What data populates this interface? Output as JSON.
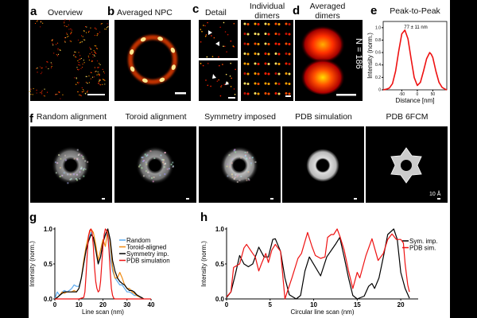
{
  "panels": {
    "a": {
      "letter": "a",
      "title": "Overview"
    },
    "b": {
      "letter": "b",
      "title": "Averaged NPC"
    },
    "c": {
      "letter": "c",
      "title": "Detail",
      "title2_line1": "Individual",
      "title2_line2": "dimers"
    },
    "d": {
      "letter": "d",
      "title_line1": "Averaged",
      "title_line2": "dimers",
      "count_label": "N = 186"
    },
    "e": {
      "letter": "e",
      "title": "Peak-to-Peak",
      "annotation": "77 ± 11 nm"
    },
    "f": {
      "letter": "f",
      "titles": [
        "Random alignment",
        "Toroid alignment",
        "Symmetry imposed",
        "PDB simulation",
        "PDB 6FCM"
      ],
      "scale_label": "10 Å"
    },
    "g": {
      "letter": "g"
    },
    "h": {
      "letter": "h"
    }
  },
  "colors": {
    "random": "#5aaaf0",
    "toroid": "#f08c14",
    "symmetry": "#000000",
    "pdb": "#ee1111"
  },
  "chart_data": [
    {
      "id": "e",
      "type": "line",
      "title": "Peak-to-Peak",
      "xlabel": "Distance [nm]",
      "ylabel": "Intensity (norm.)",
      "xticks": [
        "-50",
        "0",
        "50"
      ],
      "yticks": [
        "0",
        "0.2",
        "0.4",
        "0.6",
        "0.8",
        "1.0"
      ],
      "xlim": [
        -110,
        95
      ],
      "ylim": [
        0,
        1.1
      ],
      "grid": false,
      "series": [
        {
          "x": [
            -110,
            -100,
            -90,
            -80,
            -70,
            -60,
            -50,
            -40,
            -30,
            -20,
            -10,
            0,
            10,
            20,
            30,
            40,
            45,
            50,
            60,
            70,
            80,
            90,
            95
          ],
          "y": [
            0,
            0.01,
            0.03,
            0.1,
            0.3,
            0.62,
            0.9,
            0.96,
            0.82,
            0.5,
            0.2,
            0.07,
            0.12,
            0.3,
            0.5,
            0.6,
            0.57,
            0.52,
            0.3,
            0.12,
            0.04,
            0.01,
            0
          ]
        }
      ]
    },
    {
      "id": "g",
      "type": "line",
      "xlabel": "Line scan (nm)",
      "ylabel": "Intensity (norm.)",
      "xticks": [
        "0",
        "10",
        "20",
        "30",
        "40"
      ],
      "yticks": [
        "0.0",
        "0.5",
        "1.0"
      ],
      "xlim": [
        0,
        40
      ],
      "ylim": [
        0,
        1
      ],
      "grid": false,
      "legend": "right",
      "series": [
        {
          "name": "Random",
          "x": [
            0,
            1,
            2,
            3,
            4,
            5,
            6,
            7,
            8,
            9,
            10,
            11,
            12,
            13,
            14,
            15,
            16,
            17,
            18,
            19,
            20,
            21,
            22,
            23,
            24,
            25,
            26,
            27,
            28,
            29,
            30,
            31,
            32,
            33,
            34,
            35,
            36,
            37
          ],
          "y": [
            0,
            0.1,
            0.05,
            0.1,
            0.12,
            0.1,
            0.12,
            0.15,
            0.2,
            0.18,
            0.18,
            0.3,
            0.5,
            0.7,
            0.85,
            0.95,
            0.88,
            0.75,
            0.52,
            0.6,
            0.82,
            0.9,
            0.95,
            0.6,
            0.4,
            0.3,
            0.25,
            0.2,
            0.2,
            0.15,
            0.1,
            0.1,
            0.08,
            0.05,
            0.05,
            0.03,
            0.01,
            0
          ]
        },
        {
          "name": "Toroid-aligned",
          "x": [
            0,
            1,
            2,
            3,
            4,
            5,
            6,
            7,
            8,
            9,
            10,
            11,
            12,
            13,
            14,
            15,
            16,
            17,
            18,
            19,
            20,
            21,
            22,
            23,
            24,
            25,
            26,
            27,
            28,
            29,
            30,
            31,
            32,
            33,
            34,
            35,
            36,
            37
          ],
          "y": [
            0,
            0.02,
            0.05,
            0.1,
            0.08,
            0.1,
            0.1,
            0.1,
            0.12,
            0.1,
            0.15,
            0.3,
            0.55,
            0.75,
            0.9,
            1.0,
            0.95,
            0.78,
            0.55,
            0.7,
            0.85,
            0.75,
            1.0,
            0.8,
            0.45,
            0.3,
            0.3,
            0.38,
            0.3,
            0.2,
            0.15,
            0.15,
            0.1,
            0.08,
            0.05,
            0.03,
            0.02,
            0
          ]
        },
        {
          "name": "Symmetry imp.",
          "x": [
            0,
            1,
            2,
            3,
            4,
            5,
            6,
            7,
            8,
            9,
            10,
            11,
            12,
            13,
            14,
            15,
            16,
            17,
            18,
            19,
            20,
            21,
            22,
            23,
            24,
            25,
            26,
            27,
            28,
            29,
            30,
            31,
            32,
            33,
            34,
            35,
            36,
            37
          ],
          "y": [
            0,
            0.02,
            0.05,
            0.08,
            0.1,
            0.1,
            0.1,
            0.1,
            0.1,
            0.1,
            0.15,
            0.3,
            0.5,
            0.7,
            0.82,
            0.92,
            0.88,
            0.7,
            0.5,
            0.6,
            0.8,
            0.92,
            1.0,
            0.85,
            0.55,
            0.4,
            0.3,
            0.25,
            0.22,
            0.2,
            0.15,
            0.12,
            0.12,
            0.1,
            0.06,
            0.04,
            0.02,
            0
          ]
        },
        {
          "name": "PDB simulation",
          "x": [
            0,
            10,
            12,
            12.5,
            13,
            13.5,
            14,
            14.5,
            15,
            15.5,
            16,
            16.5,
            17,
            17.5,
            18,
            18.5,
            19,
            19.5,
            20,
            20.5,
            21,
            21.5,
            22,
            22.5,
            23,
            23.5,
            24,
            24.5,
            25,
            40
          ],
          "y": [
            0,
            0,
            0.02,
            0.1,
            0.35,
            0.65,
            0.9,
            0.98,
            1.0,
            0.95,
            0.75,
            0.45,
            0.25,
            0.15,
            0.1,
            0.12,
            0.25,
            0.5,
            0.75,
            0.92,
            1.0,
            0.98,
            0.9,
            0.7,
            0.4,
            0.15,
            0.05,
            0.01,
            0,
            0
          ]
        }
      ]
    },
    {
      "id": "h",
      "type": "line",
      "xlabel": "Circular line scan (nm)",
      "ylabel": "Intensity (norm.)",
      "xticks": [
        "0",
        "5",
        "10",
        "15",
        "20"
      ],
      "yticks": [
        "0.0",
        "0.5",
        "1.0"
      ],
      "xlim": [
        0,
        22
      ],
      "ylim": [
        0,
        1
      ],
      "grid": false,
      "legend": "right",
      "series": [
        {
          "name": "Sym. imp.",
          "x": [
            0,
            0.5,
            1,
            1.5,
            2,
            2.5,
            3,
            3.7,
            4.3,
            4.8,
            5.3,
            5.6,
            6.2,
            6.7,
            7.2,
            8,
            8.5,
            9,
            9.5,
            10.8,
            11.5,
            12.5,
            13,
            13.5,
            14,
            14.5,
            15,
            15.8,
            16.3,
            16.7,
            17,
            17.5,
            18,
            18.5,
            19.2,
            19.6,
            20,
            20.5,
            21
          ],
          "y": [
            0.02,
            0.1,
            0.35,
            0.62,
            0.5,
            0.46,
            0.5,
            0.74,
            0.6,
            0.6,
            0.85,
            0.86,
            0.68,
            0.3,
            0.06,
            0,
            0.05,
            0.4,
            0.6,
            0.33,
            0.6,
            0.78,
            0.88,
            0.6,
            0.3,
            0.05,
            0,
            0.04,
            0.18,
            0.22,
            0.15,
            0.3,
            0.6,
            0.92,
            1.0,
            0.85,
            0.38,
            0.15,
            0.01
          ]
        },
        {
          "name": "PDB sim.",
          "x": [
            0,
            0.5,
            0.8,
            1.5,
            2,
            2.3,
            3,
            3.3,
            3.7,
            4,
            4.5,
            4.8,
            5.2,
            5.6,
            6.2,
            6.7,
            7.5,
            8.2,
            8.6,
            9.3,
            9.8,
            10.2,
            10.8,
            11.3,
            11.6,
            12,
            12.3,
            12.7,
            13,
            13.5,
            14,
            14.5,
            15,
            15.3,
            16,
            16.7,
            17.4,
            18,
            18.5,
            19,
            19.5,
            20,
            20.3,
            20.5,
            20.8,
            21
          ],
          "y": [
            0.03,
            0.1,
            0.45,
            0.5,
            0.73,
            0.78,
            0.65,
            0.6,
            0.4,
            0.5,
            0.65,
            0.52,
            0.7,
            0.78,
            0.68,
            0,
            0.3,
            0.58,
            0.65,
            0.95,
            0.75,
            0.62,
            0.58,
            0.6,
            0.88,
            0.92,
            0.92,
            1.0,
            0.9,
            0.7,
            0.4,
            0.15,
            0.38,
            0.3,
            0.62,
            0.86,
            0.55,
            0.65,
            0.85,
            0.93,
            0.85,
            0.85,
            0.8,
            0.5,
            0.2,
            0.1
          ]
        }
      ]
    }
  ]
}
